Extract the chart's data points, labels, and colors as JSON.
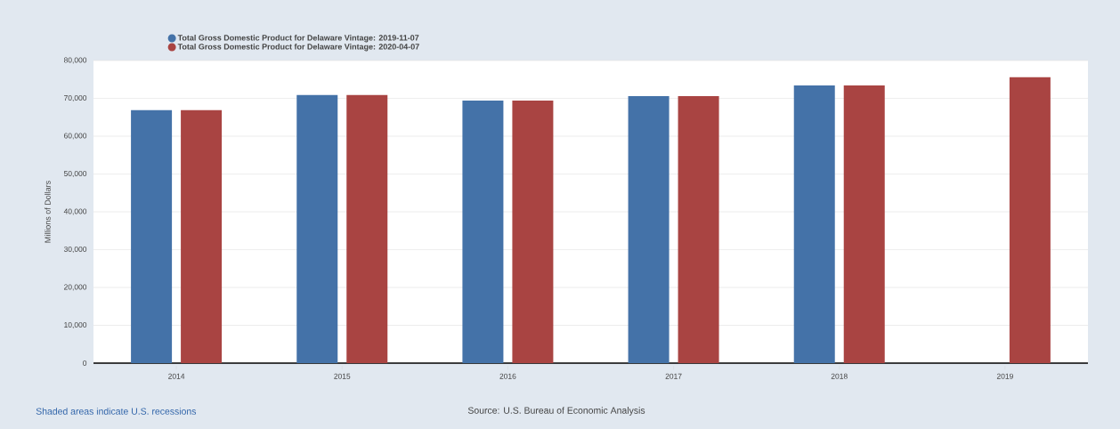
{
  "chart_data": {
    "type": "bar",
    "categories": [
      "2014",
      "2015",
      "2016",
      "2017",
      "2018",
      "2019"
    ],
    "series": [
      {
        "name": "Total Gross Domestic Product for Delaware Vintage: 2019-11-07",
        "color": "#4472a8",
        "values": [
          66900,
          70900,
          69400,
          70600,
          73400,
          null
        ]
      },
      {
        "name": "Total Gross Domestic Product for Delaware Vintage: 2020-04-07",
        "color": "#a94442",
        "values": [
          66900,
          70900,
          69400,
          70600,
          73400,
          75600
        ]
      }
    ],
    "ylabel": "Millions of Dollars",
    "ylim": [
      0,
      80000
    ],
    "yticks": [
      {
        "value": 0,
        "label": "0"
      },
      {
        "value": 10000,
        "label": "10,000"
      },
      {
        "value": 20000,
        "label": "20,000"
      },
      {
        "value": 30000,
        "label": "30,000"
      },
      {
        "value": 40000,
        "label": "40,000"
      },
      {
        "value": 50000,
        "label": "50,000"
      },
      {
        "value": 60000,
        "label": "60,000"
      },
      {
        "value": 70000,
        "label": "70,000"
      },
      {
        "value": 80000,
        "label": "80,000"
      }
    ],
    "grid": "y",
    "legend": "top left",
    "annotations": [
      "Shaded areas indicate U.S. recessions",
      "Source: U.S. Bureau of Economic Analysis"
    ]
  }
}
